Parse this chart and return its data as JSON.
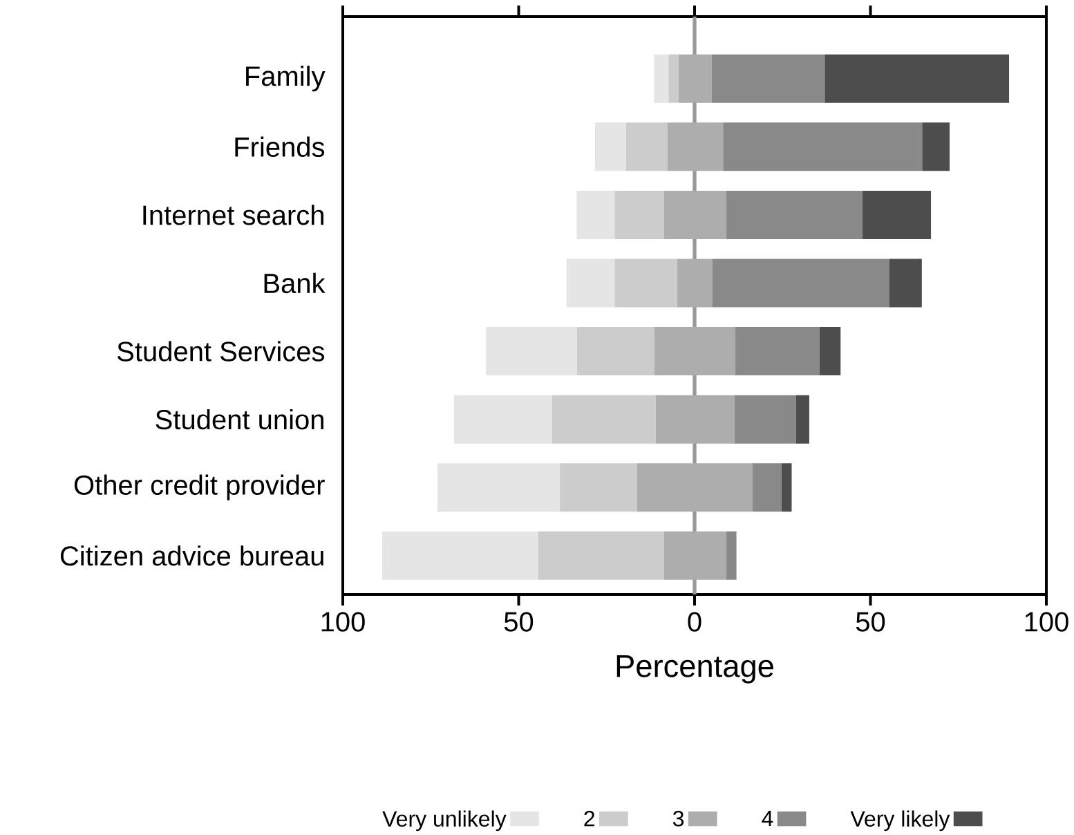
{
  "chart_data": {
    "type": "bar",
    "orientation": "horizontal",
    "categories": [
      "Family",
      "Friends",
      "Internet search",
      "Bank",
      "Student Services",
      "Student union",
      "Other credit provider",
      "Citizen advice bureau"
    ],
    "series": [
      {
        "name": "Very unlikely",
        "color": "#e5e5e5",
        "values": [
          4.1,
          8.8,
          10.8,
          13.7,
          25.9,
          27.9,
          34.8,
          44.3
        ],
        "base": [
          -11.5,
          -28.3,
          -33.5,
          -36.4,
          -59.3,
          -68.4,
          -73.1,
          -88.8
        ]
      },
      {
        "name": "2",
        "color": "#cccccc",
        "values": [
          2.9,
          11.8,
          14.0,
          17.8,
          22.0,
          29.5,
          21.9,
          35.8
        ],
        "base": [
          -7.4,
          -19.5,
          -22.7,
          -22.7,
          -33.4,
          -40.5,
          -38.3,
          -44.5
        ]
      },
      {
        "name": "3",
        "color": "#adadad",
        "values": [
          9.3,
          15.8,
          17.7,
          10.0,
          23.0,
          22.4,
          32.9,
          17.7
        ],
        "base": [
          -4.5,
          -7.7,
          -8.7,
          -4.9,
          -11.4,
          -11.0,
          -16.4,
          -8.7
        ]
      },
      {
        "name": "4",
        "color": "#898989",
        "values": [
          32.2,
          56.6,
          38.7,
          50.3,
          23.9,
          17.4,
          8.2,
          2.9
        ],
        "base": [
          4.8,
          8.1,
          9.0,
          5.1,
          11.6,
          11.4,
          16.5,
          9.0
        ]
      },
      {
        "name": "Very likely",
        "color": "#4d4d4d",
        "values": [
          52.4,
          7.8,
          19.5,
          9.2,
          6.0,
          3.8,
          2.9,
          null
        ],
        "base": [
          37.0,
          64.7,
          47.7,
          55.4,
          35.5,
          28.8,
          24.7,
          null
        ]
      }
    ],
    "xlim": [
      -100,
      100
    ],
    "xticks": [
      {
        "value": -100,
        "label": "100"
      },
      {
        "value": -50,
        "label": "50"
      },
      0,
      50,
      100
    ],
    "xlabel": "Percentage",
    "ref_lines": [
      {
        "axis": "x",
        "value": 0,
        "color": "#999999"
      }
    ],
    "legend": "bottom"
  }
}
